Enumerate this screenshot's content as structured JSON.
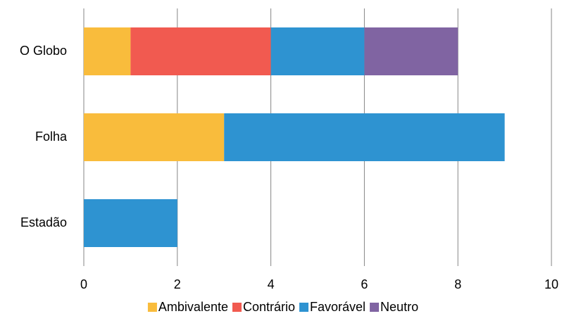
{
  "chart_data": {
    "type": "stacked_barh",
    "categories": [
      "O Globo",
      "Folha",
      "Estadão"
    ],
    "series": [
      {
        "name": "Ambivalente",
        "color": "#f9bc3c",
        "values": [
          1,
          3,
          0
        ]
      },
      {
        "name": "Contrário",
        "color": "#f15a50",
        "values": [
          3,
          0,
          0
        ]
      },
      {
        "name": "Favorável",
        "color": "#2e93d1",
        "values": [
          2,
          6,
          2
        ]
      },
      {
        "name": "Neutro",
        "color": "#8064a2",
        "values": [
          2,
          0,
          0
        ]
      }
    ],
    "xlim": [
      0,
      10
    ],
    "xticks": [
      0,
      2,
      4,
      6,
      8,
      10
    ],
    "grid": true,
    "legend": "bottom"
  }
}
